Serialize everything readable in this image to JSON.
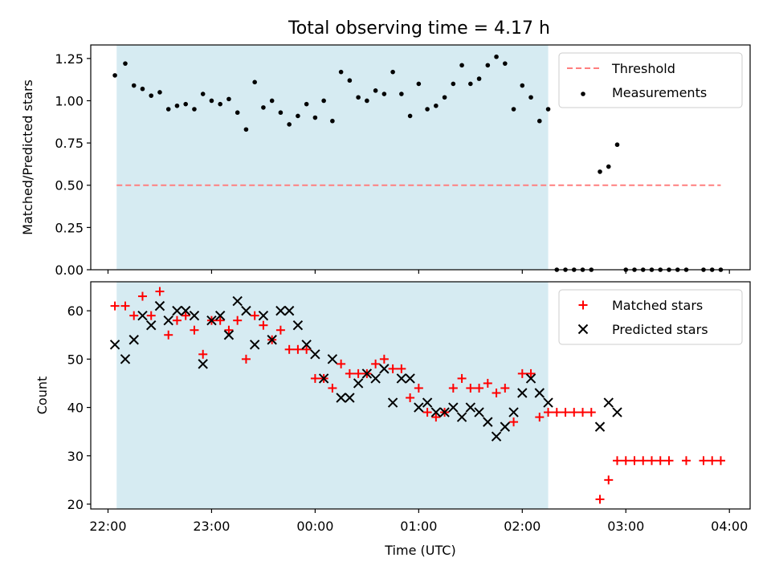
{
  "title": "Total observing time = 4.17 h",
  "chart_data": [
    {
      "type": "scatter",
      "panel": "top",
      "ylabel": "Matched/Predicted stars",
      "xlabel": "",
      "xlim": [
        "21:50",
        "04:12"
      ],
      "ylim": [
        0,
        1.33
      ],
      "yticks": [
        0.0,
        0.25,
        0.5,
        0.75,
        1.0,
        1.25
      ],
      "ytick_labels": [
        "0.00",
        "0.25",
        "0.50",
        "0.75",
        "1.00",
        "1.25"
      ],
      "shaded_region": [
        "22:05",
        "02:15"
      ],
      "shade_color": "#add8e6",
      "legend_position": "top-right",
      "threshold": {
        "name": "Threshold",
        "y": 0.5,
        "x_range": [
          "22:05",
          "03:55"
        ],
        "color": "#ff7f7f"
      },
      "series": [
        {
          "name": "Measurements",
          "color": "#000000",
          "marker": "dot",
          "x": [
            "22:04",
            "22:10",
            "22:15",
            "22:20",
            "22:25",
            "22:30",
            "22:35",
            "22:40",
            "22:45",
            "22:50",
            "22:55",
            "23:00",
            "23:05",
            "23:10",
            "23:15",
            "23:20",
            "23:25",
            "23:30",
            "23:35",
            "23:40",
            "23:45",
            "23:50",
            "23:55",
            "00:00",
            "00:05",
            "00:10",
            "00:15",
            "00:20",
            "00:25",
            "00:30",
            "00:35",
            "00:40",
            "00:45",
            "00:50",
            "00:55",
            "01:00",
            "01:05",
            "01:10",
            "01:15",
            "01:20",
            "01:25",
            "01:30",
            "01:35",
            "01:40",
            "01:45",
            "01:50",
            "01:55",
            "02:00",
            "02:05",
            "02:10",
            "02:15",
            "02:20",
            "02:25",
            "02:30",
            "02:35",
            "02:40",
            "02:45",
            "02:50",
            "02:55",
            "03:00",
            "03:05",
            "03:10",
            "03:15",
            "03:20",
            "03:25",
            "03:30",
            "03:35",
            "03:45",
            "03:50",
            "03:55"
          ],
          "y": [
            1.15,
            1.22,
            1.09,
            1.07,
            1.03,
            1.05,
            0.95,
            0.97,
            0.98,
            0.95,
            1.04,
            1.0,
            0.98,
            1.01,
            0.93,
            0.83,
            1.11,
            0.96,
            1.0,
            0.93,
            0.86,
            0.91,
            0.98,
            0.9,
            1.0,
            0.88,
            1.17,
            1.12,
            1.02,
            1.0,
            1.06,
            1.04,
            1.17,
            1.04,
            0.91,
            1.1,
            0.95,
            0.97,
            1.02,
            1.1,
            1.21,
            1.1,
            1.13,
            1.21,
            1.26,
            1.22,
            0.95,
            1.09,
            1.02,
            0.88,
            0.95,
            0.0,
            0.0,
            0.0,
            0.0,
            0.0,
            0.58,
            0.61,
            0.74,
            0.0,
            0.0,
            0.0,
            0.0,
            0.0,
            0.0,
            0.0,
            0.0,
            0.0,
            0.0,
            0.0
          ]
        }
      ]
    },
    {
      "type": "scatter",
      "panel": "bottom",
      "ylabel": "Count",
      "xlabel": "Time (UTC)",
      "xlim": [
        "21:50",
        "04:12"
      ],
      "ylim": [
        19,
        66
      ],
      "yticks": [
        20,
        30,
        40,
        50,
        60
      ],
      "ytick_labels": [
        "20",
        "30",
        "40",
        "50",
        "60"
      ],
      "xtick_labels": [
        "22:00",
        "23:00",
        "00:00",
        "01:00",
        "02:00",
        "03:00",
        "04:00"
      ],
      "shaded_region": [
        "22:05",
        "02:15"
      ],
      "shade_color": "#add8e6",
      "legend_position": "top-right",
      "series": [
        {
          "name": "Matched stars",
          "color": "#ff0000",
          "marker": "plus",
          "x": [
            "22:04",
            "22:10",
            "22:15",
            "22:20",
            "22:25",
            "22:30",
            "22:35",
            "22:40",
            "22:45",
            "22:50",
            "22:55",
            "23:00",
            "23:05",
            "23:10",
            "23:15",
            "23:20",
            "23:25",
            "23:30",
            "23:35",
            "23:40",
            "23:45",
            "23:50",
            "23:55",
            "00:00",
            "00:05",
            "00:10",
            "00:15",
            "00:20",
            "00:25",
            "00:30",
            "00:35",
            "00:40",
            "00:45",
            "00:50",
            "00:55",
            "01:00",
            "01:05",
            "01:10",
            "01:15",
            "01:20",
            "01:25",
            "01:30",
            "01:35",
            "01:40",
            "01:45",
            "01:50",
            "01:55",
            "02:00",
            "02:05",
            "02:10",
            "02:15",
            "02:20",
            "02:25",
            "02:30",
            "02:35",
            "02:40",
            "02:45",
            "02:50",
            "02:55",
            "03:00",
            "03:05",
            "03:10",
            "03:15",
            "03:20",
            "03:25",
            "03:35",
            "03:45",
            "03:50",
            "03:55"
          ],
          "y": [
            61,
            61,
            59,
            63,
            59,
            64,
            55,
            58,
            59,
            56,
            51,
            58,
            58,
            56,
            58,
            50,
            59,
            57,
            54,
            56,
            52,
            52,
            52,
            46,
            46,
            44,
            49,
            47,
            47,
            47,
            49,
            50,
            48,
            48,
            42,
            44,
            39,
            38,
            39,
            44,
            46,
            44,
            44,
            45,
            43,
            44,
            37,
            47,
            47,
            38,
            39,
            39,
            39,
            39,
            39,
            39,
            21,
            25,
            29,
            29,
            29,
            29,
            29,
            29,
            29,
            29,
            29,
            29,
            29
          ]
        },
        {
          "name": "Predicted stars",
          "color": "#000000",
          "marker": "x",
          "x": [
            "22:04",
            "22:10",
            "22:15",
            "22:20",
            "22:25",
            "22:30",
            "22:35",
            "22:40",
            "22:45",
            "22:50",
            "22:55",
            "23:00",
            "23:05",
            "23:10",
            "23:15",
            "23:20",
            "23:25",
            "23:30",
            "23:35",
            "23:40",
            "23:45",
            "23:50",
            "23:55",
            "00:00",
            "00:05",
            "00:10",
            "00:15",
            "00:20",
            "00:25",
            "00:30",
            "00:35",
            "00:40",
            "00:45",
            "00:50",
            "00:55",
            "01:00",
            "01:05",
            "01:10",
            "01:15",
            "01:20",
            "01:25",
            "01:30",
            "01:35",
            "01:40",
            "01:45",
            "01:50",
            "01:55",
            "02:00",
            "02:05",
            "02:10",
            "02:15",
            "02:45",
            "02:50",
            "02:55"
          ],
          "y": [
            53,
            50,
            54,
            59,
            57,
            61,
            58,
            60,
            60,
            59,
            49,
            58,
            59,
            55,
            62,
            60,
            53,
            59,
            54,
            60,
            60,
            57,
            53,
            51,
            46,
            50,
            42,
            42,
            45,
            47,
            46,
            48,
            41,
            46,
            46,
            40,
            41,
            39,
            39,
            40,
            38,
            40,
            39,
            37,
            34,
            36,
            39,
            43,
            46,
            43,
            41,
            36,
            41,
            39
          ]
        }
      ]
    }
  ]
}
